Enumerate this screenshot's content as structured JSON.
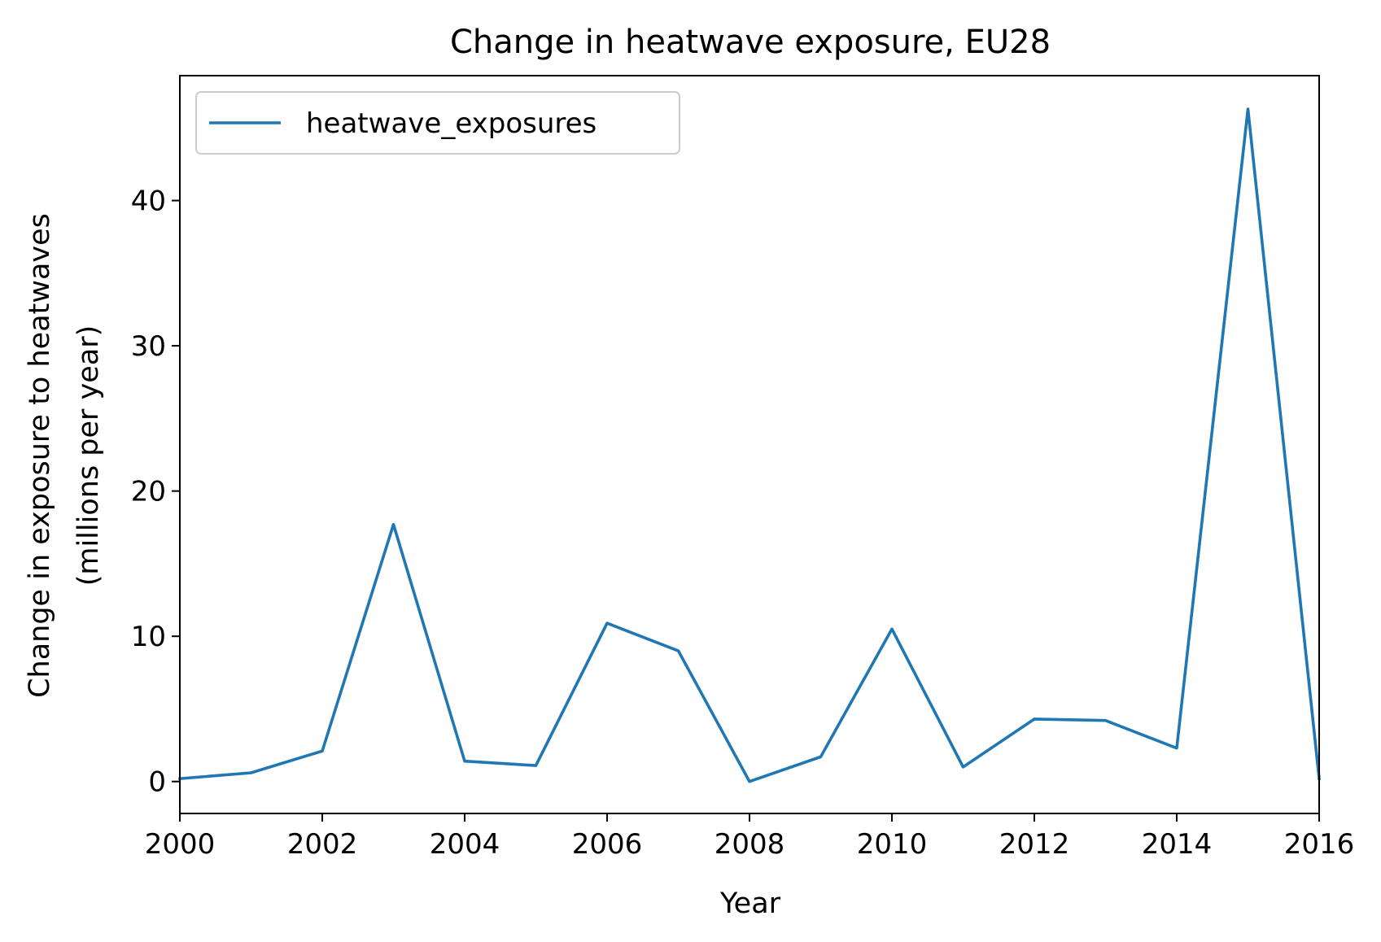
{
  "chart_data": {
    "type": "line",
    "title": "Change in heatwave exposure, EU28",
    "xlabel": "Year",
    "ylabel_line1": "Change in exposure to heatwaves",
    "ylabel_line2": "(millions per year)",
    "xlim": [
      2000,
      2016
    ],
    "ylim": [
      -2.2,
      48.6
    ],
    "xticks": [
      2000,
      2002,
      2004,
      2006,
      2008,
      2010,
      2012,
      2014,
      2016
    ],
    "yticks": [
      0,
      10,
      20,
      30,
      40
    ],
    "grid": false,
    "legend_position": "top-left",
    "x": [
      2000,
      2001,
      2002,
      2003,
      2004,
      2005,
      2006,
      2007,
      2008,
      2009,
      2010,
      2011,
      2012,
      2013,
      2014,
      2015,
      2016
    ],
    "series": [
      {
        "name": "heatwave_exposures",
        "color": "#1f77b4",
        "values": [
          0.2,
          0.6,
          2.1,
          17.7,
          1.4,
          1.1,
          10.9,
          9.0,
          0.0,
          1.7,
          10.5,
          1.0,
          4.3,
          4.2,
          2.3,
          46.3,
          0.2
        ]
      }
    ]
  }
}
